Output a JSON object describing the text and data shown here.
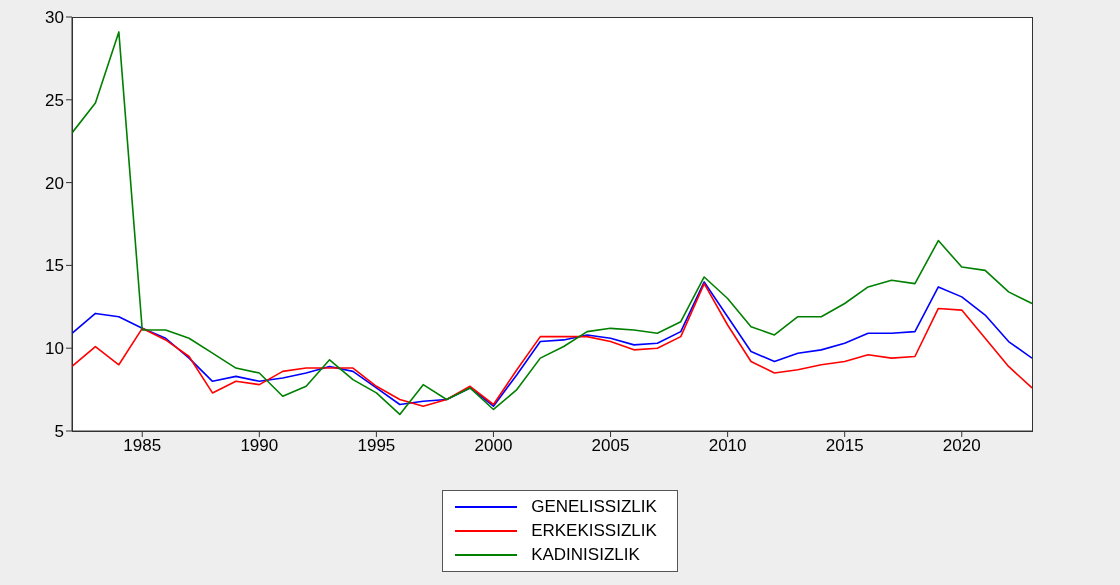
{
  "chart_data": {
    "type": "line",
    "x": [
      1982,
      1983,
      1984,
      1985,
      1986,
      1987,
      1988,
      1989,
      1990,
      1991,
      1992,
      1993,
      1994,
      1995,
      1996,
      1997,
      1998,
      1999,
      2000,
      2001,
      2002,
      2003,
      2004,
      2005,
      2006,
      2007,
      2008,
      2009,
      2010,
      2011,
      2012,
      2013,
      2014,
      2015,
      2016,
      2017,
      2018,
      2019,
      2020,
      2021,
      2022,
      2023
    ],
    "series": [
      {
        "name": "GENELISSIZLIK",
        "color": "#0000ff",
        "values": [
          10.9,
          12.1,
          11.9,
          11.2,
          10.6,
          9.4,
          8.0,
          8.3,
          8.0,
          8.2,
          8.5,
          8.9,
          8.6,
          7.6,
          6.6,
          6.8,
          6.9,
          7.6,
          6.5,
          8.4,
          10.4,
          10.5,
          10.8,
          10.6,
          10.2,
          10.3,
          11.0,
          14.0,
          11.9,
          9.8,
          9.2,
          9.7,
          9.9,
          10.3,
          10.9,
          10.9,
          11.0,
          13.7,
          13.1,
          12.0,
          10.4,
          9.4
        ]
      },
      {
        "name": "ERKEKISSIZLIK",
        "color": "#ff0000",
        "values": [
          8.9,
          10.1,
          9.0,
          11.2,
          10.5,
          9.5,
          7.3,
          8.0,
          7.8,
          8.6,
          8.8,
          8.8,
          8.8,
          7.7,
          6.9,
          6.5,
          6.9,
          7.7,
          6.6,
          8.7,
          10.7,
          10.7,
          10.7,
          10.4,
          9.9,
          10.0,
          10.7,
          13.9,
          11.4,
          9.2,
          8.5,
          8.7,
          9.0,
          9.2,
          9.6,
          9.4,
          9.5,
          12.4,
          12.3,
          10.6,
          8.9,
          7.6
        ]
      },
      {
        "name": "KADINISIZLIK",
        "color": "#008000",
        "values": [
          23.0,
          24.8,
          29.1,
          11.1,
          11.1,
          10.6,
          9.7,
          8.8,
          8.5,
          7.1,
          7.7,
          9.3,
          8.1,
          7.3,
          6.0,
          7.8,
          6.9,
          7.6,
          6.3,
          7.5,
          9.4,
          10.1,
          11.0,
          11.2,
          11.1,
          10.9,
          11.6,
          14.3,
          13.0,
          11.3,
          10.8,
          11.9,
          11.9,
          12.7,
          13.7,
          14.1,
          13.9,
          16.5,
          14.9,
          14.7,
          13.4,
          12.7
        ]
      }
    ],
    "xlim": [
      1982,
      2023
    ],
    "xticks": [
      1985,
      1990,
      1995,
      2000,
      2005,
      2010,
      2015,
      2020
    ],
    "ylim": [
      5,
      30
    ],
    "yticks": [
      5,
      10,
      15,
      20,
      25,
      30
    ],
    "grid": false,
    "legend": "bottom",
    "marker": "none",
    "line_style": "solid"
  }
}
